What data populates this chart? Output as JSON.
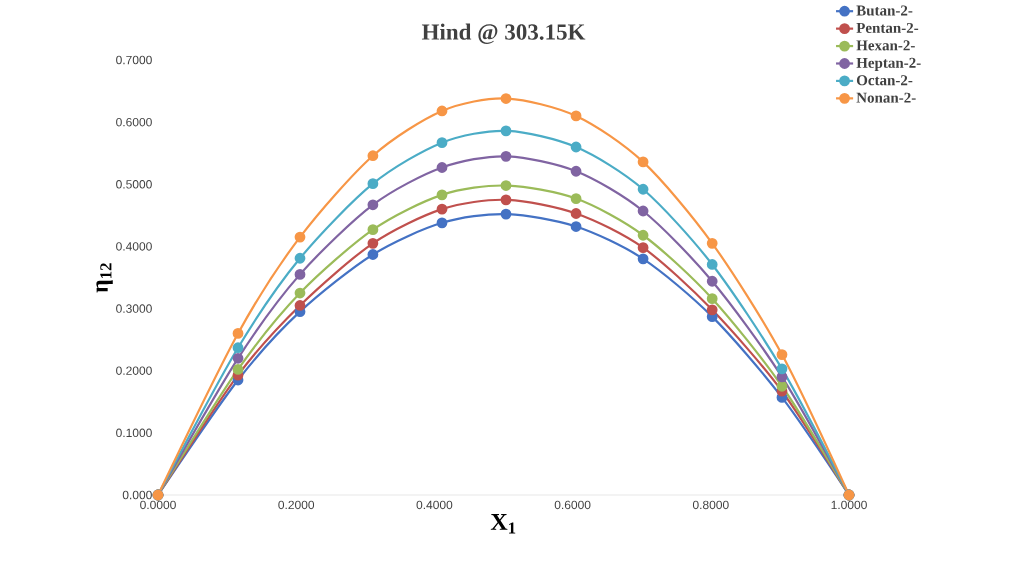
{
  "chart_data": {
    "type": "line",
    "title": "Hind @ 303.15K",
    "xlabel": "X$_{1}$",
    "ylabel": "η$_{12}$",
    "x": [
      0,
      0.1158,
      0.2055,
      0.311,
      0.411,
      0.5036,
      0.605,
      0.702,
      0.802,
      0.903,
      1.0
    ],
    "series": [
      {
        "name": "Butan-2-",
        "color": "#4472c4",
        "values": [
          0,
          0.185,
          0.295,
          0.387,
          0.438,
          0.452,
          0.432,
          0.38,
          0.287,
          0.157,
          0
        ]
      },
      {
        "name": "Pentan-2-",
        "color": "#c0504d",
        "values": [
          0,
          0.193,
          0.305,
          0.405,
          0.46,
          0.475,
          0.453,
          0.398,
          0.298,
          0.167,
          0
        ]
      },
      {
        "name": "Hexan-2-",
        "color": "#9bbb59",
        "values": [
          0,
          0.202,
          0.325,
          0.427,
          0.483,
          0.498,
          0.477,
          0.418,
          0.316,
          0.175,
          0
        ]
      },
      {
        "name": "Heptan-2-",
        "color": "#8064a2",
        "values": [
          0,
          0.22,
          0.355,
          0.467,
          0.527,
          0.545,
          0.521,
          0.457,
          0.344,
          0.19,
          0
        ]
      },
      {
        "name": "Octan-2-",
        "color": "#4bacc6",
        "values": [
          0,
          0.237,
          0.381,
          0.501,
          0.567,
          0.586,
          0.56,
          0.492,
          0.371,
          0.203,
          0
        ]
      },
      {
        "name": "Nonan-2-",
        "color": "#f79646",
        "values": [
          0,
          0.26,
          0.415,
          0.546,
          0.618,
          0.638,
          0.61,
          0.536,
          0.405,
          0.226,
          0
        ]
      }
    ],
    "xlim": [
      0,
      1.0
    ],
    "xticks": [
      {
        "value": 0,
        "label": "0.0000"
      },
      {
        "value": 0.2,
        "label": "0.2000"
      },
      {
        "value": 0.4,
        "label": "0.4000"
      },
      {
        "value": 0.6,
        "label": "0.6000"
      },
      {
        "value": 0.8,
        "label": "0.8000"
      },
      {
        "value": 1.0,
        "label": "1.0000"
      }
    ],
    "ylim": [
      0,
      0.7
    ],
    "yticks": [
      {
        "value": 0,
        "label": "0.000"
      },
      {
        "value": 0.1,
        "label": "0.1000"
      },
      {
        "value": 0.2,
        "label": "0.2000"
      },
      {
        "value": 0.3,
        "label": "0.3000"
      },
      {
        "value": 0.4,
        "label": "0.4000"
      },
      {
        "value": 0.5,
        "label": "0.5000"
      },
      {
        "value": 0.6,
        "label": "0.6000"
      },
      {
        "value": 0.7,
        "label": "0.7000"
      }
    ],
    "grid": false,
    "legend": "top right",
    "marker": "circle",
    "line_style": "solid"
  }
}
